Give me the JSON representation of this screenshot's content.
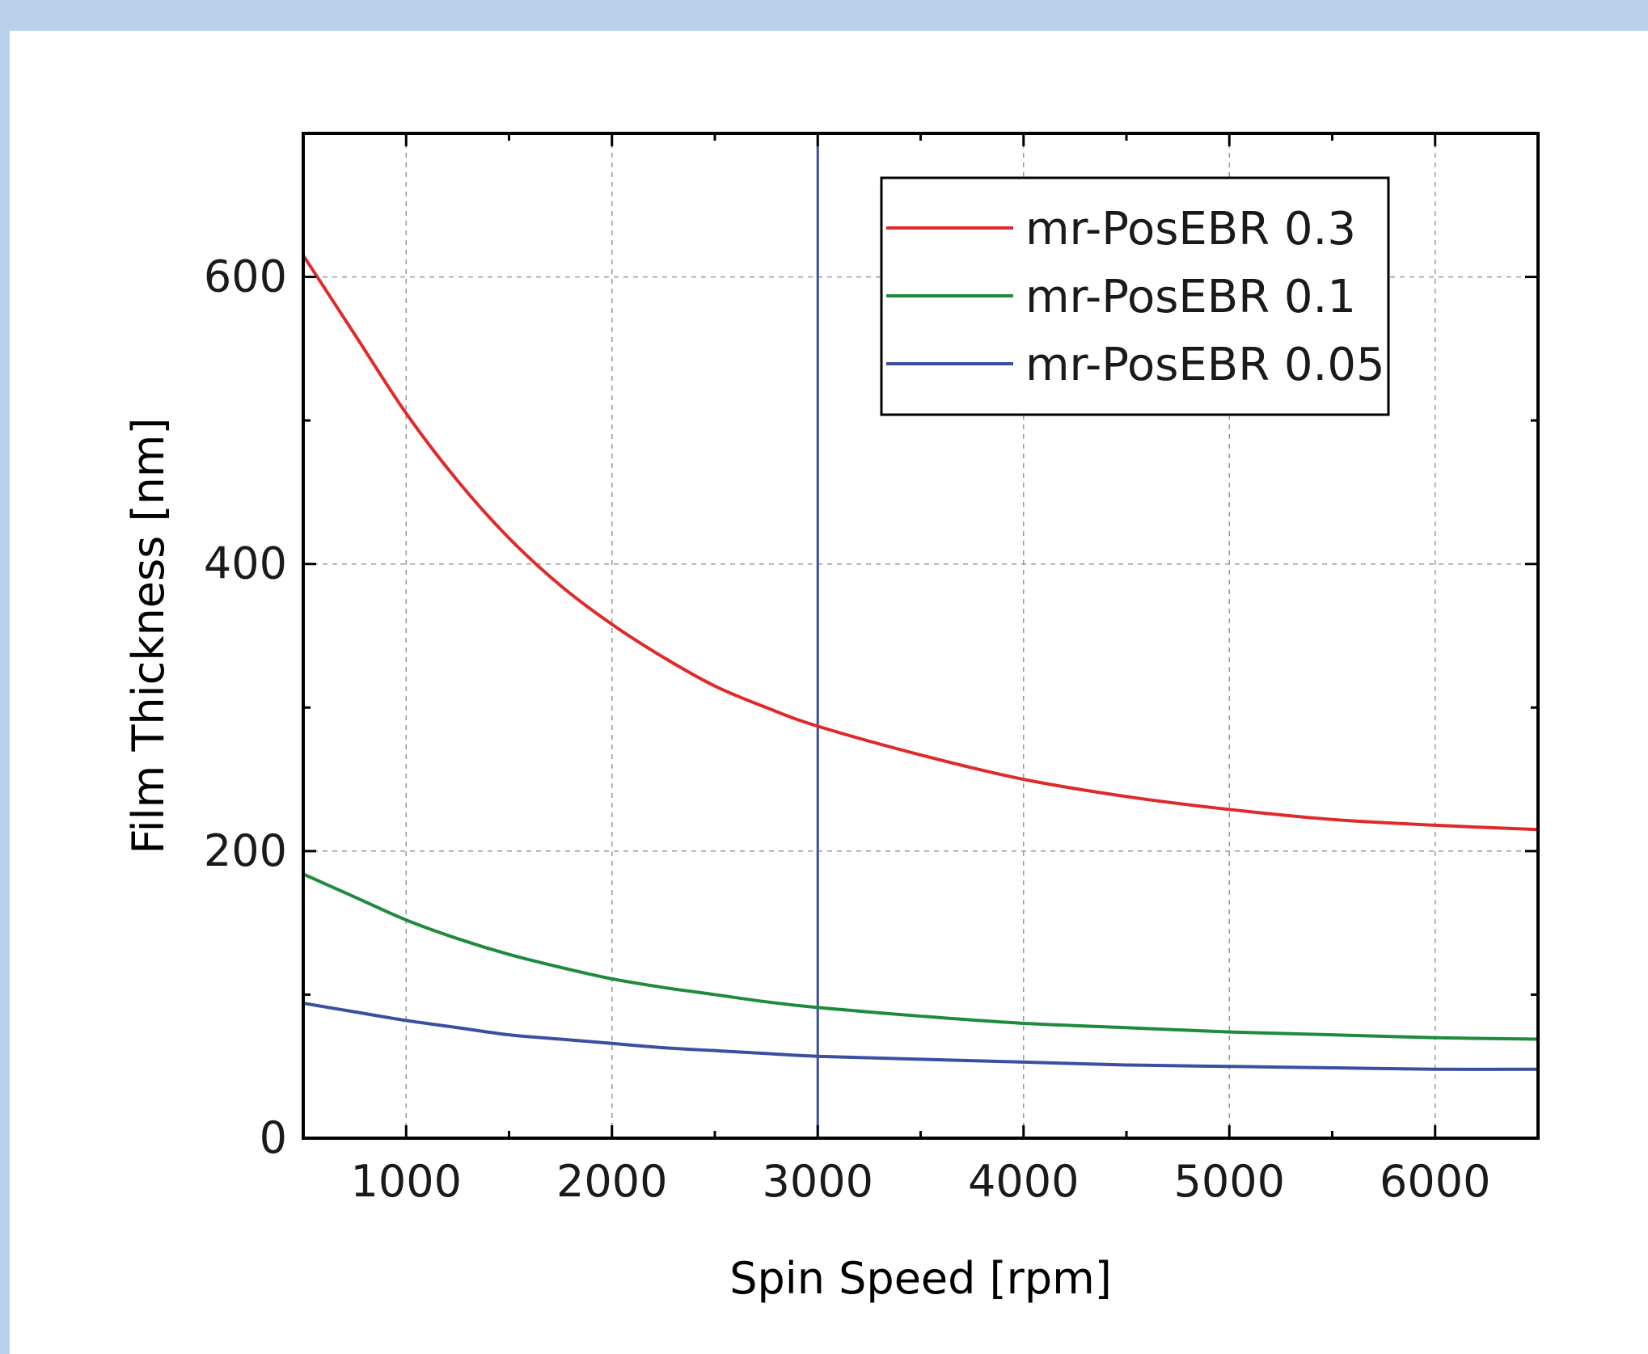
{
  "chart_data": {
    "type": "line",
    "title": "",
    "xlabel": "Spin Speed [rpm]",
    "ylabel": "Film Thickness [nm]",
    "xlim": [
      500,
      6500
    ],
    "ylim": [
      0,
      700
    ],
    "x_ticks": [
      1000,
      2000,
      3000,
      4000,
      5000,
      6000
    ],
    "y_ticks": [
      0,
      200,
      400,
      600
    ],
    "grid": true,
    "legend_position": "top-right",
    "reference_line": {
      "x": 3000,
      "color": "#3a4fa0"
    },
    "series": [
      {
        "name": "mr-PosEBR 0.3",
        "color": "#e02a2a",
        "x": [
          500,
          750,
          1000,
          1250,
          1500,
          1750,
          2000,
          2250,
          2500,
          2750,
          3000,
          3500,
          4000,
          4500,
          5000,
          5500,
          6000,
          6500
        ],
        "y": [
          615,
          560,
          505,
          458,
          418,
          385,
          358,
          335,
          315,
          300,
          287,
          267,
          250,
          238,
          229,
          222,
          218,
          215
        ]
      },
      {
        "name": "mr-PosEBR 0.1",
        "color": "#1e8a3c",
        "x": [
          500,
          750,
          1000,
          1250,
          1500,
          1750,
          2000,
          2250,
          2500,
          2750,
          3000,
          3500,
          4000,
          4500,
          5000,
          5500,
          6000,
          6500
        ],
        "y": [
          184,
          168,
          152,
          139,
          128,
          119,
          111,
          105,
          100,
          95,
          91,
          85,
          80,
          77,
          74,
          72,
          70,
          69
        ]
      },
      {
        "name": "mr-PosEBR 0.05",
        "color": "#3a4fa0",
        "x": [
          500,
          750,
          1000,
          1250,
          1500,
          1750,
          2000,
          2250,
          2500,
          2750,
          3000,
          3500,
          4000,
          4500,
          5000,
          5500,
          6000,
          6500
        ],
        "y": [
          94,
          88,
          82,
          77,
          72,
          69,
          66,
          63,
          61,
          59,
          57,
          55,
          53,
          51,
          50,
          49,
          48,
          48
        ]
      }
    ]
  }
}
